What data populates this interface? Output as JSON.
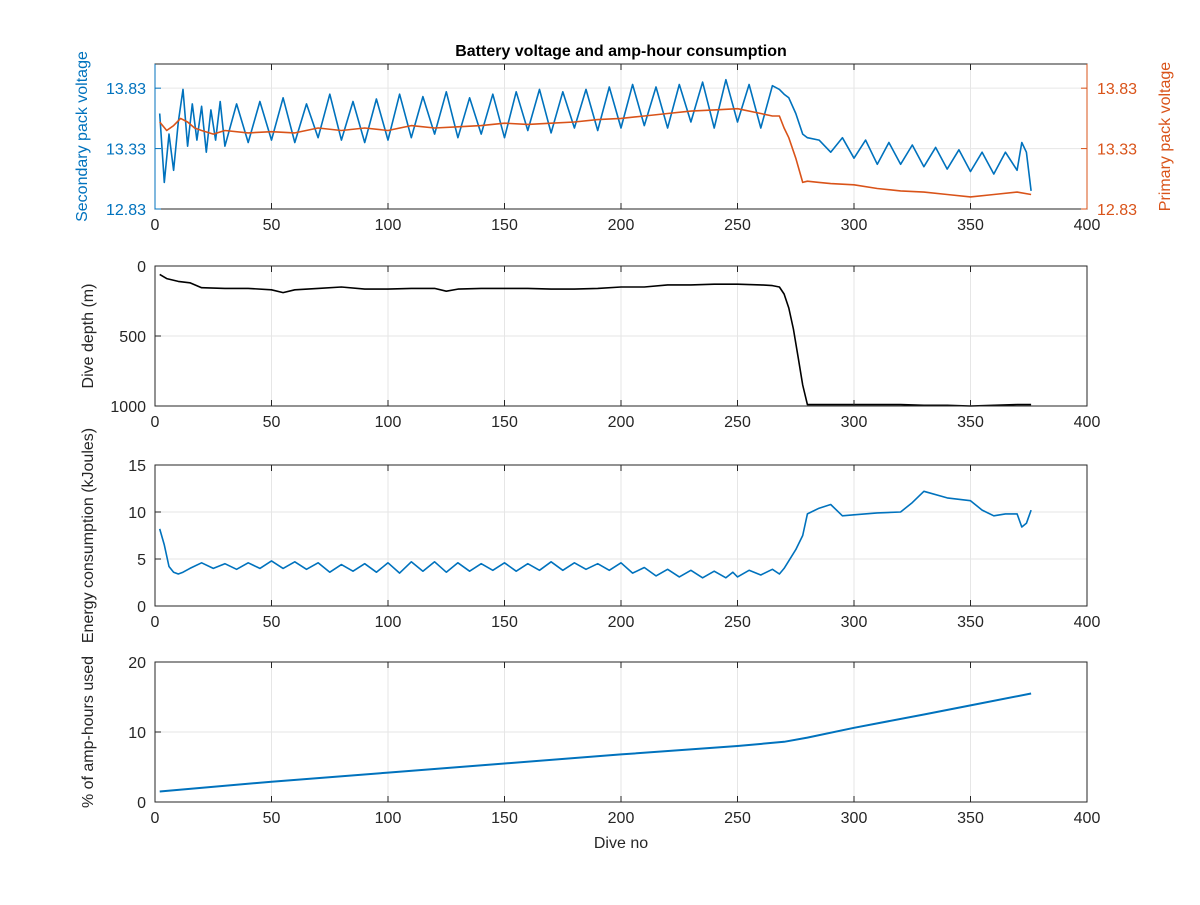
{
  "chart_data": [
    {
      "type": "line",
      "title": "Battery voltage and amp-hour consumption",
      "xlabel": "",
      "ylabel": "Secondary pack voltage",
      "ylabel_right": "Primary pack voltage",
      "xlim": [
        0,
        400
      ],
      "ylim": [
        12.83,
        14.03
      ],
      "ylim_right": [
        12.83,
        14.03
      ],
      "xticks": [
        "0",
        "50",
        "100",
        "150",
        "200",
        "250",
        "300",
        "350",
        "400"
      ],
      "yticks": [
        "12.83",
        "13.33",
        "13.83"
      ],
      "yticks_right": [
        "12.83",
        "13.33",
        "13.83"
      ],
      "grid": true,
      "series": [
        {
          "axis": "left",
          "color": "#0072BD",
          "x": [
            2,
            4,
            6,
            8,
            10,
            12,
            14,
            16,
            18,
            20,
            22,
            24,
            26,
            28,
            30,
            35,
            40,
            45,
            50,
            55,
            60,
            65,
            70,
            75,
            80,
            85,
            90,
            95,
            100,
            105,
            110,
            115,
            120,
            125,
            130,
            135,
            140,
            145,
            150,
            155,
            160,
            165,
            170,
            175,
            180,
            185,
            190,
            195,
            200,
            205,
            210,
            215,
            220,
            225,
            230,
            235,
            240,
            245,
            250,
            255,
            260,
            265,
            268,
            270,
            272,
            275,
            278,
            280,
            285,
            290,
            295,
            300,
            305,
            310,
            315,
            320,
            325,
            330,
            335,
            340,
            345,
            350,
            355,
            360,
            365,
            370,
            372,
            374,
            376
          ],
          "y": [
            13.62,
            13.05,
            13.45,
            13.15,
            13.55,
            13.82,
            13.35,
            13.7,
            13.4,
            13.68,
            13.3,
            13.65,
            13.4,
            13.72,
            13.35,
            13.7,
            13.38,
            13.72,
            13.4,
            13.75,
            13.38,
            13.7,
            13.42,
            13.78,
            13.4,
            13.72,
            13.38,
            13.74,
            13.4,
            13.78,
            13.42,
            13.76,
            13.45,
            13.8,
            13.42,
            13.75,
            13.45,
            13.78,
            13.42,
            13.8,
            13.48,
            13.82,
            13.46,
            13.8,
            13.5,
            13.82,
            13.48,
            13.84,
            13.5,
            13.86,
            13.52,
            13.84,
            13.5,
            13.86,
            13.55,
            13.88,
            13.5,
            13.9,
            13.55,
            13.86,
            13.5,
            13.85,
            13.82,
            13.78,
            13.75,
            13.62,
            13.45,
            13.42,
            13.4,
            13.3,
            13.42,
            13.25,
            13.4,
            13.2,
            13.38,
            13.2,
            13.36,
            13.18,
            13.34,
            13.16,
            13.32,
            13.14,
            13.3,
            13.12,
            13.3,
            13.15,
            13.38,
            13.3,
            12.98
          ]
        },
        {
          "axis": "right",
          "color": "#D95319",
          "x": [
            2,
            5,
            8,
            11,
            14,
            17,
            20,
            25,
            30,
            40,
            50,
            60,
            70,
            80,
            90,
            100,
            110,
            120,
            130,
            140,
            150,
            160,
            170,
            180,
            190,
            200,
            210,
            220,
            230,
            240,
            250,
            260,
            265,
            268,
            270,
            272,
            275,
            278,
            280,
            285,
            290,
            300,
            310,
            320,
            330,
            340,
            350,
            360,
            370,
            376
          ],
          "y": [
            13.55,
            13.48,
            13.52,
            13.58,
            13.55,
            13.5,
            13.48,
            13.45,
            13.48,
            13.46,
            13.47,
            13.46,
            13.5,
            13.48,
            13.5,
            13.48,
            13.52,
            13.5,
            13.51,
            13.52,
            13.54,
            13.53,
            13.54,
            13.55,
            13.57,
            13.58,
            13.6,
            13.62,
            13.64,
            13.65,
            13.66,
            13.62,
            13.6,
            13.6,
            13.5,
            13.42,
            13.25,
            13.05,
            13.06,
            13.05,
            13.04,
            13.03,
            13.0,
            12.98,
            12.97,
            12.95,
            12.93,
            12.95,
            12.97,
            12.95
          ]
        }
      ]
    },
    {
      "type": "line",
      "title": "",
      "xlabel": "",
      "ylabel": "Dive depth (m)",
      "xlim": [
        0,
        400
      ],
      "ylim": [
        0,
        1000
      ],
      "y_reversed": true,
      "xticks": [
        "0",
        "50",
        "100",
        "150",
        "200",
        "250",
        "300",
        "350",
        "400"
      ],
      "yticks": [
        "0",
        "500",
        "1000"
      ],
      "grid": true,
      "series": [
        {
          "color": "#000000",
          "x": [
            2,
            5,
            10,
            15,
            20,
            30,
            40,
            50,
            55,
            60,
            70,
            80,
            90,
            100,
            110,
            120,
            125,
            130,
            140,
            150,
            160,
            170,
            180,
            190,
            200,
            210,
            220,
            230,
            240,
            250,
            260,
            265,
            268,
            270,
            272,
            274,
            276,
            278,
            280,
            285,
            290,
            300,
            310,
            320,
            330,
            340,
            350,
            360,
            370,
            376
          ],
          "y": [
            60,
            90,
            110,
            120,
            155,
            160,
            160,
            170,
            190,
            170,
            160,
            150,
            165,
            165,
            160,
            160,
            180,
            165,
            160,
            160,
            160,
            165,
            165,
            160,
            150,
            150,
            135,
            135,
            130,
            130,
            135,
            140,
            150,
            200,
            300,
            450,
            650,
            850,
            990,
            990,
            990,
            990,
            990,
            990,
            995,
            995,
            1000,
            995,
            990,
            990
          ]
        }
      ]
    },
    {
      "type": "line",
      "title": "",
      "xlabel": "",
      "ylabel": "Energy consumption (kJoules)",
      "xlim": [
        0,
        400
      ],
      "ylim": [
        0,
        15
      ],
      "xticks": [
        "0",
        "50",
        "100",
        "150",
        "200",
        "250",
        "300",
        "350",
        "400"
      ],
      "yticks": [
        "0",
        "5",
        "10",
        "15"
      ],
      "grid": true,
      "series": [
        {
          "color": "#0072BD",
          "x": [
            2,
            4,
            6,
            8,
            10,
            12,
            15,
            20,
            25,
            30,
            35,
            40,
            45,
            50,
            55,
            60,
            65,
            70,
            75,
            80,
            85,
            90,
            95,
            100,
            105,
            110,
            115,
            120,
            125,
            130,
            135,
            140,
            145,
            150,
            155,
            160,
            165,
            170,
            175,
            180,
            185,
            190,
            195,
            200,
            205,
            210,
            215,
            220,
            225,
            230,
            235,
            240,
            245,
            248,
            250,
            255,
            260,
            265,
            268,
            270,
            275,
            278,
            280,
            285,
            290,
            295,
            300,
            310,
            320,
            325,
            330,
            340,
            350,
            355,
            360,
            365,
            370,
            372,
            374,
            376
          ],
          "y": [
            8.2,
            6.5,
            4.2,
            3.6,
            3.4,
            3.6,
            4.0,
            4.6,
            4.0,
            4.5,
            3.9,
            4.6,
            4.0,
            4.8,
            4.0,
            4.7,
            3.9,
            4.6,
            3.6,
            4.4,
            3.7,
            4.5,
            3.6,
            4.6,
            3.5,
            4.7,
            3.7,
            4.7,
            3.6,
            4.6,
            3.7,
            4.5,
            3.8,
            4.6,
            3.7,
            4.5,
            3.8,
            4.7,
            3.8,
            4.6,
            3.9,
            4.5,
            3.8,
            4.6,
            3.5,
            4.1,
            3.2,
            3.9,
            3.1,
            3.8,
            3.0,
            3.7,
            3.0,
            3.6,
            3.1,
            3.8,
            3.3,
            3.9,
            3.4,
            4.0,
            6.0,
            7.5,
            9.8,
            10.4,
            10.8,
            9.6,
            9.7,
            9.9,
            10.0,
            11.0,
            12.2,
            11.5,
            11.2,
            10.2,
            9.6,
            9.8,
            9.8,
            8.4,
            8.8,
            10.2
          ]
        }
      ]
    },
    {
      "type": "line",
      "title": "",
      "xlabel": "Dive no",
      "ylabel": "% of amp-hours used",
      "xlim": [
        0,
        400
      ],
      "ylim": [
        0,
        20
      ],
      "xticks": [
        "0",
        "50",
        "100",
        "150",
        "200",
        "250",
        "300",
        "350",
        "400"
      ],
      "yticks": [
        "0",
        "10",
        "20"
      ],
      "grid": true,
      "series": [
        {
          "color": "#0072BD",
          "x": [
            2,
            50,
            100,
            150,
            200,
            250,
            270,
            280,
            300,
            330,
            350,
            376
          ],
          "y": [
            1.5,
            2.9,
            4.2,
            5.5,
            6.8,
            8.0,
            8.6,
            9.2,
            10.6,
            12.5,
            13.8,
            15.5
          ]
        }
      ]
    }
  ]
}
